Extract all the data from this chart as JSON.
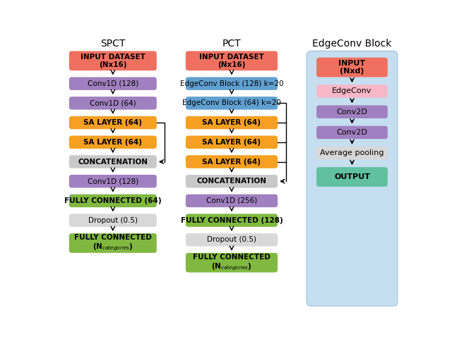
{
  "title_spct": "SPCT",
  "title_pct": "PCT",
  "title_edgeconv": "EdgeConv Block",
  "bg_color": "#ffffff",
  "edgeconv_block_bg": "#c5dff0",
  "edgeconv_block_border": "#a8c8e0",
  "colors": {
    "red": "#f07060",
    "purple": "#a080c0",
    "orange": "#f5a020",
    "gray": "#c8c8c8",
    "green": "#80b840",
    "blue": "#60a0d0",
    "pink": "#f8b8c8",
    "teal": "#60c0a0",
    "light_gray": "#d8d8d8"
  },
  "spct_nodes": [
    {
      "label": "INPUT DATASET\n(Nx16)",
      "color": "red",
      "bold": true,
      "tall": true
    },
    {
      "label": "Conv1D (128)",
      "color": "purple",
      "bold": false,
      "tall": false
    },
    {
      "label": "Conv1D (64)",
      "color": "purple",
      "bold": false,
      "tall": false
    },
    {
      "label": "SA LAYER (64)",
      "color": "orange",
      "bold": true,
      "tall": false
    },
    {
      "label": "SA LAYER (64)",
      "color": "orange",
      "bold": true,
      "tall": false
    },
    {
      "label": "CONCATENATION",
      "color": "gray",
      "bold": true,
      "tall": false
    },
    {
      "label": "Conv1D (128)",
      "color": "purple",
      "bold": false,
      "tall": false
    },
    {
      "label": "FULLY CONNECTED (64)",
      "color": "green",
      "bold": true,
      "tall": false
    },
    {
      "label": "Dropout (0.5)",
      "color": "light_gray",
      "bold": false,
      "tall": false
    },
    {
      "label": "FULLY CONNECTED\n(N$_{categories}$)",
      "color": "green",
      "bold": true,
      "tall": true
    }
  ],
  "pct_nodes": [
    {
      "label": "INPUT DATASET\n(Nx16)",
      "color": "red",
      "bold": true,
      "tall": true
    },
    {
      "label": "EdgeConv Block (128) k=20",
      "color": "blue",
      "bold": false,
      "tall": false
    },
    {
      "label": "EdgeConv Block (64) k=20",
      "color": "blue",
      "bold": false,
      "tall": false
    },
    {
      "label": "SA LAYER (64)",
      "color": "orange",
      "bold": true,
      "tall": false
    },
    {
      "label": "SA LAYER (64)",
      "color": "orange",
      "bold": true,
      "tall": false
    },
    {
      "label": "SA LAYER (64)",
      "color": "orange",
      "bold": true,
      "tall": false
    },
    {
      "label": "CONCATENATION",
      "color": "gray",
      "bold": true,
      "tall": false
    },
    {
      "label": "Conv1D (256)",
      "color": "purple",
      "bold": false,
      "tall": false
    },
    {
      "label": "FULLY CONNECTED (128)",
      "color": "green",
      "bold": true,
      "tall": false
    },
    {
      "label": "Dropout (0.5)",
      "color": "light_gray",
      "bold": false,
      "tall": false
    },
    {
      "label": "FULLY CONNECTED\n(N$_{categories}$)",
      "color": "green",
      "bold": true,
      "tall": true
    }
  ],
  "ec_nodes": [
    {
      "label": "INPUT\n(Nxd)",
      "color": "red",
      "bold": true,
      "tall": true
    },
    {
      "label": "EdgeConv",
      "color": "pink",
      "bold": false,
      "tall": false
    },
    {
      "label": "Conv2D",
      "color": "purple",
      "bold": false,
      "tall": false
    },
    {
      "label": "Conv2D",
      "color": "purple",
      "bold": false,
      "tall": false
    },
    {
      "label": "Average pooling",
      "color": "light_gray",
      "bold": false,
      "tall": false
    },
    {
      "label": "OUTPUT",
      "color": "teal",
      "bold": true,
      "tall": true
    }
  ]
}
